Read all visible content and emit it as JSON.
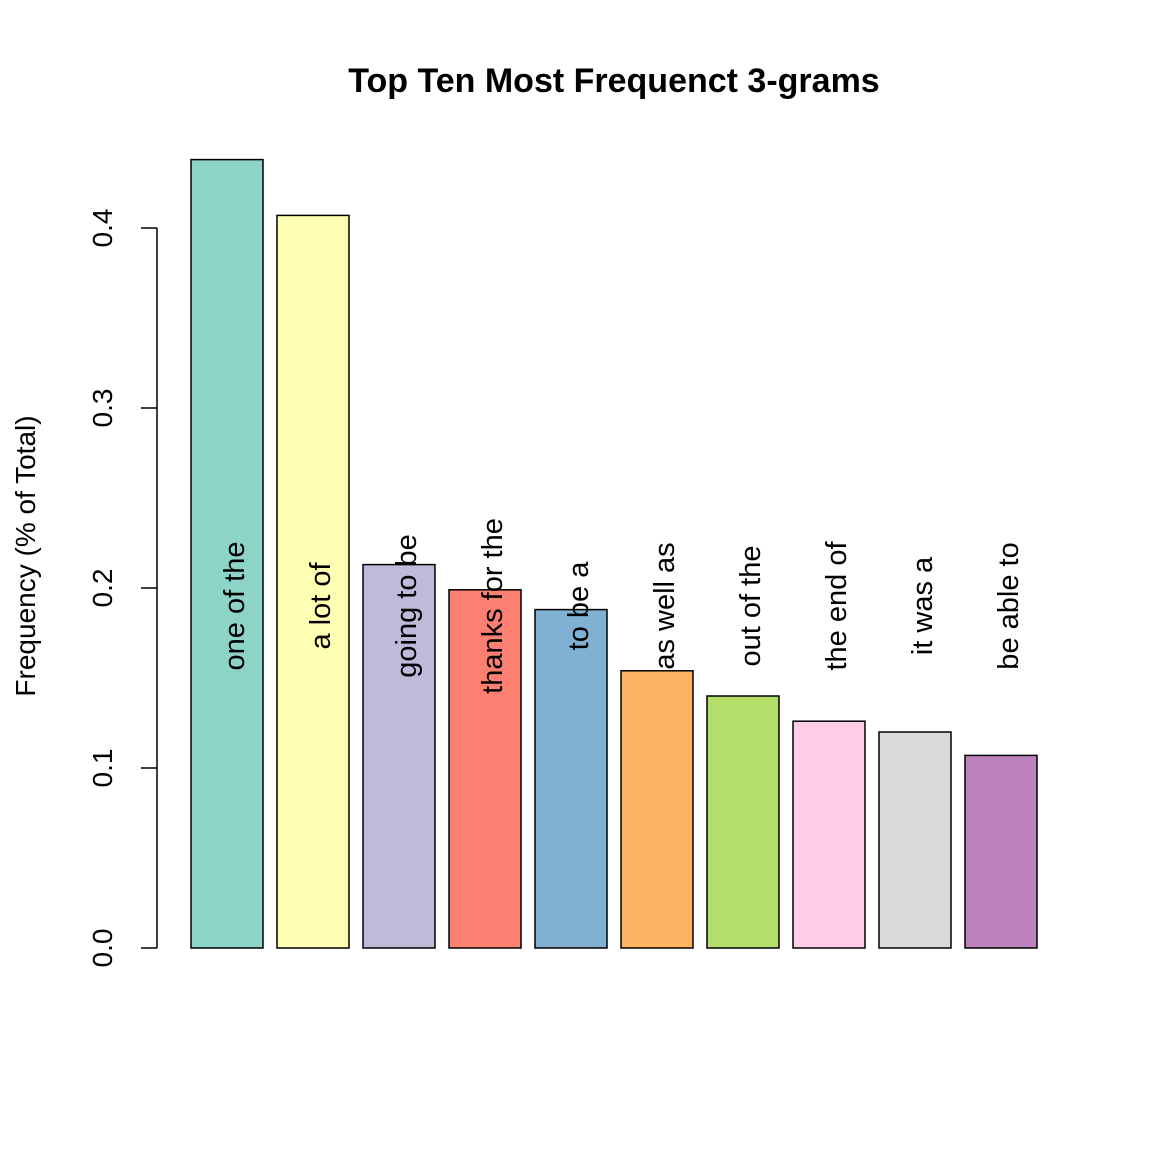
{
  "chart_data": {
    "type": "bar",
    "title": "Top Ten Most Frequenct 3-grams",
    "xlabel": "",
    "ylabel": "Frequency (% of Total)",
    "ylim": [
      0,
      0.44
    ],
    "yticks": [
      "0.0",
      "0.1",
      "0.2",
      "0.3",
      "0.4"
    ],
    "ytick_values": [
      0.0,
      0.1,
      0.2,
      0.3,
      0.4
    ],
    "grid": false,
    "categories": [
      "one of the",
      "a lot of",
      "going to be",
      "thanks for the",
      "to be a",
      "as well as",
      "out of the",
      "the end of",
      "it was a",
      "be able to"
    ],
    "values": [
      0.438,
      0.407,
      0.213,
      0.199,
      0.188,
      0.154,
      0.14,
      0.126,
      0.12,
      0.107
    ],
    "colors": [
      "#8DD3C7",
      "#FFFFB3",
      "#BEBADA",
      "#FB8072",
      "#80B1D3",
      "#FDB462",
      "#B3DE69",
      "#FCCDE5",
      "#D9D9D9",
      "#BC80BD"
    ]
  }
}
